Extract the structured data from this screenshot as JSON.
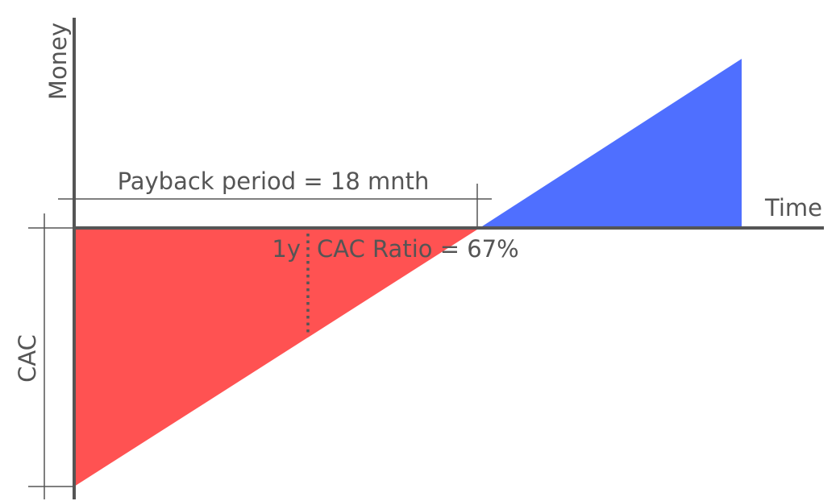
{
  "axes": {
    "y_label": "Money",
    "x_label": "Time"
  },
  "labels": {
    "cac": "CAC",
    "payback": "Payback period = 18 mnth",
    "year_marker": "1y",
    "cac_ratio": "CAC Ratio = 67%"
  }
}
